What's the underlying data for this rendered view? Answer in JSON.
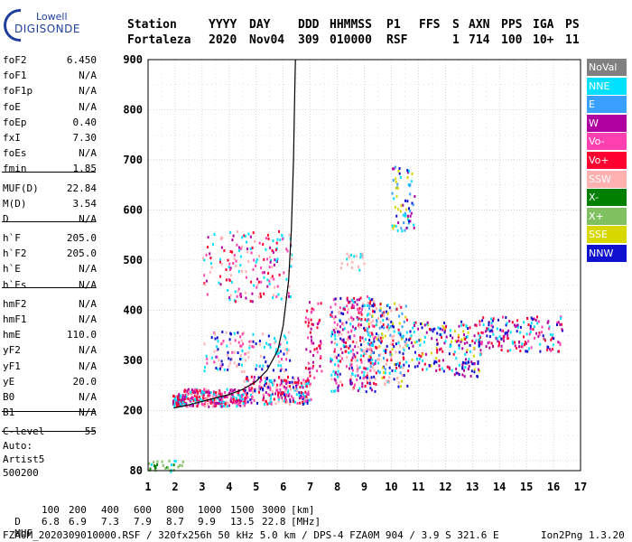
{
  "logo": {
    "line1": "Lowell",
    "line2": "DIGISONDE"
  },
  "header": {
    "labels": [
      "Station",
      "YYYY",
      "DAY",
      "DDD",
      "HHMMSS",
      "P1",
      "FFS",
      "S",
      "AXN",
      "PPS",
      "IGA",
      "PS"
    ],
    "values": [
      "Fortaleza",
      "2020",
      "Nov04",
      "309",
      "010000",
      "RSF",
      "",
      "1",
      "714",
      "100",
      "10+",
      "11"
    ]
  },
  "params": [
    {
      "label": "foF2",
      "value": "6.450"
    },
    {
      "label": "foF1",
      "value": "N/A"
    },
    {
      "label": "foF1p",
      "value": "N/A"
    },
    {
      "label": "foE",
      "value": "N/A"
    },
    {
      "label": "foEp",
      "value": "0.40"
    },
    {
      "label": "fxI",
      "value": "7.30"
    },
    {
      "label": "foEs",
      "value": "N/A"
    },
    {
      "label": "fmin",
      "value": "1.85"
    },
    {
      "label": "MUF(D)",
      "value": "22.84"
    },
    {
      "label": "M(D)",
      "value": "3.54"
    },
    {
      "label": "D",
      "value": "N/A"
    },
    {
      "label": "h`F",
      "value": "205.0"
    },
    {
      "label": "h`F2",
      "value": "205.0"
    },
    {
      "label": "h`E",
      "value": "N/A"
    },
    {
      "label": "h`Es",
      "value": "N/A"
    },
    {
      "label": "hmF2",
      "value": "N/A"
    },
    {
      "label": "hmF1",
      "value": "N/A"
    },
    {
      "label": "hmE",
      "value": "110.0"
    },
    {
      "label": "yF2",
      "value": "N/A"
    },
    {
      "label": "yF1",
      "value": "N/A"
    },
    {
      "label": "yE",
      "value": "20.0"
    },
    {
      "label": "B0",
      "value": "N/A"
    },
    {
      "label": "B1",
      "value": "N/A"
    },
    {
      "label": "C-level",
      "value": "55"
    }
  ],
  "auto": {
    "line1": "Auto:",
    "line2": "Artist5",
    "line3": "500200"
  },
  "legend": [
    {
      "label": "NoVal",
      "color": "#808080"
    },
    {
      "label": "NNE",
      "color": "#00e0ff"
    },
    {
      "label": "E",
      "color": "#3aa0ff"
    },
    {
      "label": "W",
      "color": "#b000a0"
    },
    {
      "label": "Vo-",
      "color": "#ff40b0"
    },
    {
      "label": "Vo+",
      "color": "#ff0030"
    },
    {
      "label": "SSW",
      "color": "#ffb0b0"
    },
    {
      "label": "X-",
      "color": "#008000"
    },
    {
      "label": "X+",
      "color": "#80c060"
    },
    {
      "label": "SSE",
      "color": "#d8d800"
    },
    {
      "label": "NNW",
      "color": "#1010d0"
    }
  ],
  "footer": {
    "d_label": "D",
    "d_values": [
      "100",
      "200",
      "400",
      "600",
      "800",
      "1000",
      "1500",
      "3000"
    ],
    "d_unit": "[km]",
    "muf_label": "MUF",
    "muf_values": [
      "6.8",
      "6.9",
      "7.3",
      "7.9",
      "8.7",
      "9.9",
      "13.5",
      "22.8"
    ],
    "muf_unit": "[MHz]",
    "info": "FZA0M_2020309010000.RSF / 320fx256h 50 kHz 5.0 km / DPS-4 FZA0M 904 / 3.9 S 321.6 E",
    "version": "Ion2Png 1.3.20"
  },
  "chart_data": {
    "type": "scatter",
    "xlim": [
      1,
      17
    ],
    "ylim": [
      80,
      900
    ],
    "xticks": [
      "1",
      "2",
      "3",
      "4",
      "5",
      "6",
      "7",
      "8",
      "9",
      "10",
      "11",
      "12",
      "13",
      "14",
      "15",
      "16",
      "17"
    ],
    "yticks": [
      "80",
      "200",
      "300",
      "400",
      "500",
      "600",
      "700",
      "800",
      "900"
    ],
    "grid": true,
    "legend_position": "right",
    "clusters": [
      {
        "x": [
          1.9,
          2.4
        ],
        "y": [
          210,
          235
        ],
        "colors": [
          "#ff0030",
          "#b000a0",
          "#00e0ff"
        ],
        "n": 60
      },
      {
        "x": [
          2.3,
          4.6
        ],
        "y": [
          210,
          245
        ],
        "colors": [
          "#ff0030",
          "#ff40b0",
          "#b000a0",
          "#00e0ff",
          "#ffb0b0"
        ],
        "n": 280
      },
      {
        "x": [
          4.5,
          7.0
        ],
        "y": [
          215,
          270
        ],
        "colors": [
          "#ff0030",
          "#ff40b0",
          "#b000a0",
          "#00e0ff",
          "#ffb0b0",
          "#1010d0"
        ],
        "n": 260
      },
      {
        "x": [
          3.0,
          6.3
        ],
        "y": [
          280,
          360
        ],
        "colors": [
          "#00e0ff",
          "#ff40b0",
          "#ffb0b0",
          "#1010d0"
        ],
        "n": 140
      },
      {
        "x": [
          3.0,
          6.3
        ],
        "y": [
          420,
          560
        ],
        "colors": [
          "#ff40b0",
          "#b000a0",
          "#ffb0b0",
          "#00e0ff",
          "#ff0030"
        ],
        "n": 180
      },
      {
        "x": [
          6.8,
          7.4
        ],
        "y": [
          250,
          420
        ],
        "colors": [
          "#ff0030",
          "#ff40b0",
          "#b000a0"
        ],
        "n": 60
      },
      {
        "x": [
          7.7,
          9.4
        ],
        "y": [
          240,
          430
        ],
        "colors": [
          "#ff0030",
          "#ff40b0",
          "#b000a0",
          "#ffb0b0",
          "#00e0ff",
          "#1010d0"
        ],
        "n": 300
      },
      {
        "x": [
          8.1,
          9.0
        ],
        "y": [
          480,
          520
        ],
        "colors": [
          "#00e0ff",
          "#ffb0b0"
        ],
        "n": 20
      },
      {
        "x": [
          9.0,
          10.6
        ],
        "y": [
          250,
          420
        ],
        "colors": [
          "#ffb0b0",
          "#ff0030",
          "#00e0ff",
          "#3aa0ff",
          "#d8d800",
          "#1010d0"
        ],
        "n": 220
      },
      {
        "x": [
          10.0,
          10.9
        ],
        "y": [
          560,
          690
        ],
        "colors": [
          "#00e0ff",
          "#3aa0ff",
          "#1010d0",
          "#b000a0",
          "#d8d800"
        ],
        "n": 70
      },
      {
        "x": [
          10.6,
          13.3
        ],
        "y": [
          280,
          380
        ],
        "colors": [
          "#b000a0",
          "#1010d0",
          "#00e0ff",
          "#ff0030",
          "#d8d800"
        ],
        "n": 170
      },
      {
        "x": [
          13.2,
          16.3
        ],
        "y": [
          320,
          390
        ],
        "colors": [
          "#b000a0",
          "#ff0030",
          "#00e0ff",
          "#1010d0",
          "#ff40b0"
        ],
        "n": 170
      },
      {
        "x": [
          12.3,
          13.2
        ],
        "y": [
          270,
          300
        ],
        "colors": [
          "#1010d0",
          "#b000a0"
        ],
        "n": 30
      },
      {
        "x": [
          1.0,
          2.3
        ],
        "y": [
          80,
          102
        ],
        "colors": [
          "#008000",
          "#80c060",
          "#00e0ff"
        ],
        "n": 30
      }
    ],
    "curve": {
      "x": [
        1.95,
        2.4,
        3.0,
        3.5,
        4.0,
        4.5,
        5.0,
        5.4,
        5.8,
        6.0,
        6.2,
        6.3,
        6.38,
        6.42,
        6.45
      ],
      "y": [
        205,
        210,
        218,
        225,
        232,
        242,
        258,
        280,
        320,
        370,
        460,
        560,
        700,
        820,
        900
      ]
    }
  }
}
